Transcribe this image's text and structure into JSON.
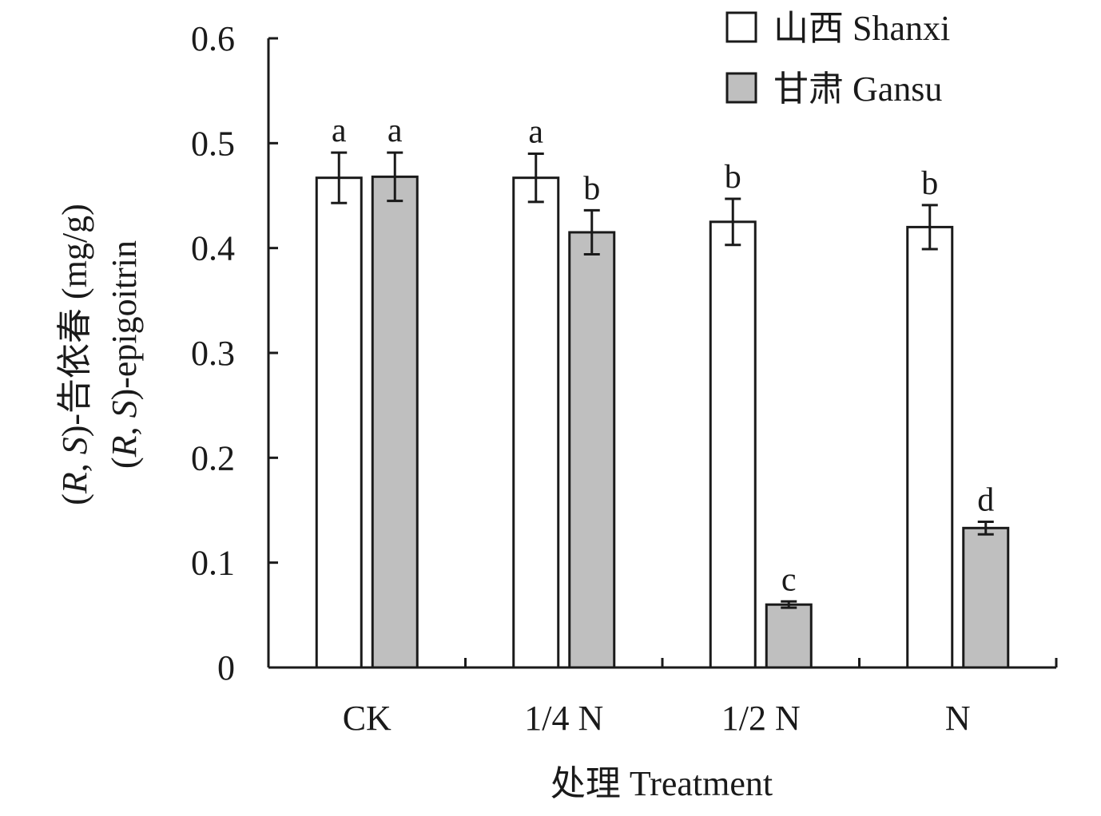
{
  "chart_data": {
    "type": "bar",
    "categories": [
      "CK",
      "1/4 N",
      "1/2 N",
      "N"
    ],
    "series": [
      {
        "name": "山西 Shanxi",
        "color": "#ffffff",
        "values": [
          0.467,
          0.467,
          0.425,
          0.42
        ],
        "errors": [
          0.024,
          0.023,
          0.022,
          0.021
        ],
        "letters": [
          "a",
          "a",
          "b",
          "b"
        ]
      },
      {
        "name": "甘肃 Gansu",
        "color": "#bfbfbf",
        "values": [
          0.468,
          0.415,
          0.06,
          0.133
        ],
        "errors": [
          0.023,
          0.021,
          0.003,
          0.006
        ],
        "letters": [
          "a",
          "b",
          "c",
          "d"
        ]
      }
    ],
    "yticks": [
      "0",
      "0.1",
      "0.2",
      "0.3",
      "0.4",
      "0.5",
      "0.6"
    ],
    "ylim": [
      0,
      0.6
    ],
    "ylabel_line1": "(R, S)-告依春 (mg/g)",
    "ylabel_line2": "(R, S)-epigoitrin",
    "xlabel": "处理 Treatment",
    "legend_position": "top-right",
    "grid": false
  }
}
